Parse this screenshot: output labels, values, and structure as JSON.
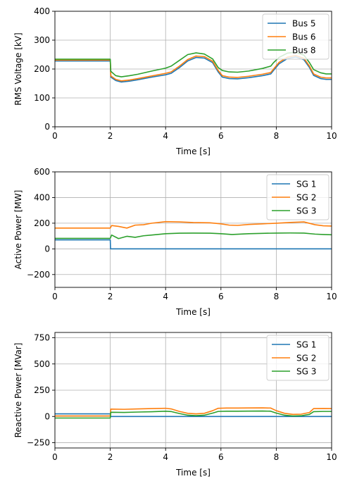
{
  "chart_data": [
    {
      "type": "line",
      "xlabel": "Time [s]",
      "ylabel": "RMS Voltage [kV]",
      "xlim": [
        0,
        10
      ],
      "ylim": [
        0,
        400
      ],
      "xticks": [
        0,
        2,
        4,
        6,
        8,
        10
      ],
      "yticks": [
        0,
        100,
        200,
        300,
        400
      ],
      "x_tick_labels": [
        "0",
        "2",
        "4",
        "6",
        "8",
        "10"
      ],
      "y_tick_labels": [
        "0",
        "100",
        "200",
        "300",
        "400"
      ],
      "grid": true,
      "legend_position": "top-right",
      "series": [
        {
          "name": "Bus 5",
          "color": "#1f77b4",
          "points": [
            [
              0,
              228
            ],
            [
              2,
              228
            ],
            [
              2.02,
              172
            ],
            [
              2.2,
              160
            ],
            [
              2.4,
              155
            ],
            [
              2.7,
              158
            ],
            [
              3,
              163
            ],
            [
              3.5,
              172
            ],
            [
              4,
              180
            ],
            [
              4.2,
              185
            ],
            [
              4.5,
              205
            ],
            [
              4.8,
              228
            ],
            [
              5.1,
              240
            ],
            [
              5.4,
              238
            ],
            [
              5.7,
              222
            ],
            [
              5.9,
              190
            ],
            [
              6.05,
              172
            ],
            [
              6.3,
              167
            ],
            [
              6.6,
              166
            ],
            [
              7,
              170
            ],
            [
              7.5,
              177
            ],
            [
              7.8,
              183
            ],
            [
              7.9,
              195
            ],
            [
              8.1,
              218
            ],
            [
              8.4,
              236
            ],
            [
              8.7,
              242
            ],
            [
              9.0,
              232
            ],
            [
              9.2,
              205
            ],
            [
              9.35,
              178
            ],
            [
              9.6,
              167
            ],
            [
              9.8,
              164
            ],
            [
              10,
              164
            ]
          ]
        },
        {
          "name": "Bus 6",
          "color": "#ff7f0e",
          "points": [
            [
              0,
              231
            ],
            [
              2,
              231
            ],
            [
              2.02,
              176
            ],
            [
              2.2,
              164
            ],
            [
              2.4,
              159
            ],
            [
              2.7,
              162
            ],
            [
              3,
              167
            ],
            [
              3.5,
              176
            ],
            [
              4,
              185
            ],
            [
              4.2,
              190
            ],
            [
              4.5,
              210
            ],
            [
              4.8,
              233
            ],
            [
              5.1,
              245
            ],
            [
              5.4,
              243
            ],
            [
              5.7,
              227
            ],
            [
              5.9,
              195
            ],
            [
              6.05,
              177
            ],
            [
              6.3,
              172
            ],
            [
              6.6,
              171
            ],
            [
              7,
              175
            ],
            [
              7.5,
              182
            ],
            [
              7.8,
              188
            ],
            [
              7.9,
              200
            ],
            [
              8.1,
              223
            ],
            [
              8.4,
              241
            ],
            [
              8.7,
              247
            ],
            [
              9.0,
              237
            ],
            [
              9.2,
              210
            ],
            [
              9.35,
              183
            ],
            [
              9.6,
              172
            ],
            [
              9.8,
              169
            ],
            [
              10,
              169
            ]
          ]
        },
        {
          "name": "Bus 8",
          "color": "#2ca02c",
          "points": [
            [
              0,
              234
            ],
            [
              2,
              234
            ],
            [
              2.02,
              192
            ],
            [
              2.2,
              177
            ],
            [
              2.4,
              173
            ],
            [
              2.7,
              177
            ],
            [
              3,
              182
            ],
            [
              3.5,
              193
            ],
            [
              4,
              203
            ],
            [
              4.2,
              210
            ],
            [
              4.5,
              230
            ],
            [
              4.8,
              250
            ],
            [
              5.1,
              256
            ],
            [
              5.4,
              252
            ],
            [
              5.7,
              235
            ],
            [
              5.9,
              205
            ],
            [
              6.05,
              195
            ],
            [
              6.3,
              190
            ],
            [
              6.6,
              189
            ],
            [
              7,
              193
            ],
            [
              7.5,
              202
            ],
            [
              7.8,
              210
            ],
            [
              7.9,
              222
            ],
            [
              8.1,
              240
            ],
            [
              8.4,
              255
            ],
            [
              8.7,
              258
            ],
            [
              9.0,
              248
            ],
            [
              9.2,
              222
            ],
            [
              9.35,
              198
            ],
            [
              9.6,
              187
            ],
            [
              9.8,
              183
            ],
            [
              10,
              183
            ]
          ]
        }
      ]
    },
    {
      "type": "line",
      "xlabel": "Time [s]",
      "ylabel": "Active Power [MW]",
      "xlim": [
        0,
        10
      ],
      "ylim": [
        -300,
        600
      ],
      "xticks": [
        0,
        2,
        4,
        6,
        8,
        10
      ],
      "yticks": [
        -200,
        0,
        200,
        400,
        600
      ],
      "x_tick_labels": [
        "0",
        "2",
        "4",
        "6",
        "8",
        "10"
      ],
      "y_tick_labels": [
        "−200",
        "0",
        "200",
        "400",
        "600"
      ],
      "grid": true,
      "legend_position": "top-right",
      "series": [
        {
          "name": "SG 1",
          "color": "#1f77b4",
          "points": [
            [
              0,
              70
            ],
            [
              2,
              70
            ],
            [
              2.01,
              0
            ],
            [
              10,
              0
            ]
          ]
        },
        {
          "name": "SG 2",
          "color": "#ff7f0e",
          "points": [
            [
              0,
              162
            ],
            [
              2,
              162
            ],
            [
              2.05,
              182
            ],
            [
              2.3,
              175
            ],
            [
              2.6,
              162
            ],
            [
              2.9,
              185
            ],
            [
              3.2,
              188
            ],
            [
              3.5,
              200
            ],
            [
              4,
              212
            ],
            [
              4.5,
              210
            ],
            [
              5,
              205
            ],
            [
              5.6,
              203
            ],
            [
              6,
              195
            ],
            [
              6.3,
              185
            ],
            [
              6.6,
              183
            ],
            [
              7,
              190
            ],
            [
              7.5,
              195
            ],
            [
              8,
              200
            ],
            [
              8.5,
              206
            ],
            [
              9,
              210
            ],
            [
              9.4,
              188
            ],
            [
              9.7,
              180
            ],
            [
              10,
              178
            ]
          ]
        },
        {
          "name": "SG 3",
          "color": "#2ca02c",
          "points": [
            [
              0,
              82
            ],
            [
              2,
              82
            ],
            [
              2.05,
              108
            ],
            [
              2.3,
              80
            ],
            [
              2.6,
              98
            ],
            [
              2.9,
              90
            ],
            [
              3.2,
              102
            ],
            [
              3.5,
              108
            ],
            [
              4,
              118
            ],
            [
              4.5,
              122
            ],
            [
              5,
              123
            ],
            [
              5.6,
              122
            ],
            [
              6,
              118
            ],
            [
              6.4,
              112
            ],
            [
              7,
              118
            ],
            [
              7.5,
              121
            ],
            [
              8,
              123
            ],
            [
              8.5,
              124
            ],
            [
              9,
              123
            ],
            [
              9.4,
              115
            ],
            [
              9.7,
              112
            ],
            [
              10,
              110
            ]
          ]
        }
      ]
    },
    {
      "type": "line",
      "xlabel": "Time [s]",
      "ylabel": "Reactive Power [MVar]",
      "xlim": [
        0,
        10
      ],
      "ylim": [
        -300,
        800
      ],
      "xticks": [
        0,
        2,
        4,
        6,
        8,
        10
      ],
      "yticks": [
        -250,
        0,
        250,
        500,
        750
      ],
      "x_tick_labels": [
        "0",
        "2",
        "4",
        "6",
        "8",
        "10"
      ],
      "y_tick_labels": [
        "−250",
        "0",
        "250",
        "500",
        "750"
      ],
      "grid": true,
      "legend_position": "top-right",
      "series": [
        {
          "name": "SG 1",
          "color": "#1f77b4",
          "points": [
            [
              0,
              25
            ],
            [
              2,
              25
            ],
            [
              2.01,
              0
            ],
            [
              10,
              0
            ]
          ]
        },
        {
          "name": "SG 2",
          "color": "#ff7f0e",
          "points": [
            [
              0,
              5
            ],
            [
              2,
              5
            ],
            [
              2.02,
              70
            ],
            [
              2.5,
              68
            ],
            [
              3,
              72
            ],
            [
              3.5,
              75
            ],
            [
              4,
              78
            ],
            [
              4.2,
              72
            ],
            [
              4.5,
              48
            ],
            [
              4.8,
              30
            ],
            [
              5.1,
              25
            ],
            [
              5.4,
              30
            ],
            [
              5.7,
              55
            ],
            [
              5.9,
              78
            ],
            [
              6.2,
              80
            ],
            [
              6.6,
              80
            ],
            [
              7,
              81
            ],
            [
              7.5,
              82
            ],
            [
              7.8,
              80
            ],
            [
              8.0,
              55
            ],
            [
              8.3,
              30
            ],
            [
              8.6,
              20
            ],
            [
              8.9,
              22
            ],
            [
              9.2,
              38
            ],
            [
              9.35,
              75
            ],
            [
              9.7,
              76
            ],
            [
              10,
              75
            ]
          ]
        },
        {
          "name": "SG 3",
          "color": "#2ca02c",
          "points": [
            [
              0,
              -15
            ],
            [
              2,
              -15
            ],
            [
              2.02,
              40
            ],
            [
              2.5,
              38
            ],
            [
              3,
              42
            ],
            [
              3.5,
              45
            ],
            [
              4,
              50
            ],
            [
              4.2,
              47
            ],
            [
              4.5,
              28
            ],
            [
              4.8,
              12
            ],
            [
              5.1,
              8
            ],
            [
              5.4,
              12
            ],
            [
              5.7,
              32
            ],
            [
              5.9,
              48
            ],
            [
              6.2,
              50
            ],
            [
              6.6,
              50
            ],
            [
              7,
              51
            ],
            [
              7.5,
              52
            ],
            [
              7.8,
              50
            ],
            [
              8.0,
              32
            ],
            [
              8.3,
              12
            ],
            [
              8.6,
              5
            ],
            [
              8.9,
              7
            ],
            [
              9.2,
              20
            ],
            [
              9.35,
              46
            ],
            [
              9.7,
              48
            ],
            [
              10,
              48
            ]
          ]
        }
      ]
    }
  ]
}
